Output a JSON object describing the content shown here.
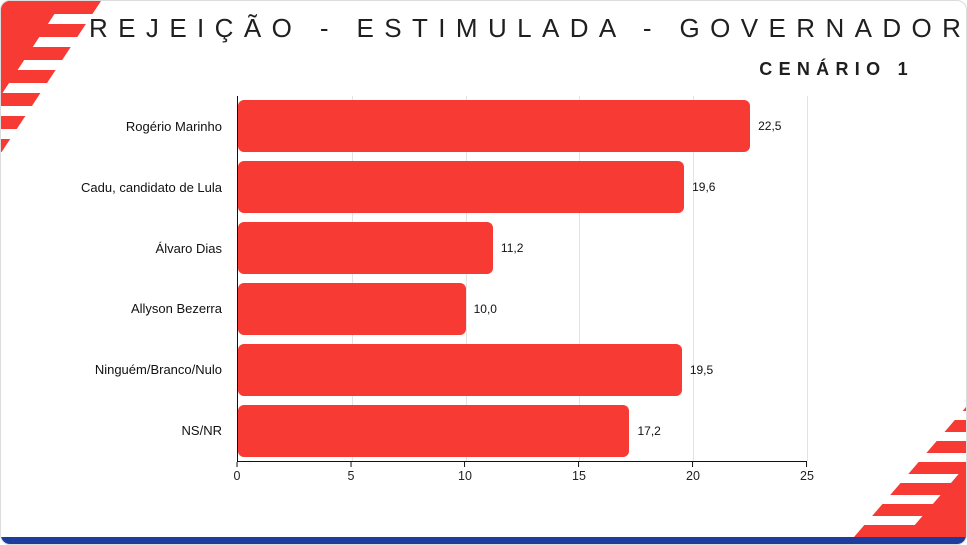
{
  "colors": {
    "accent_red": "#f73b34",
    "navy": "#1d3c9e",
    "grid": "#e3e3e3",
    "text": "#1f1f1f"
  },
  "header": {
    "title": "REJEIÇÃO - ESTIMULADA - GOVERNADOR",
    "subtitle": "CENÁRIO 1"
  },
  "chart_data": {
    "type": "bar",
    "orientation": "horizontal",
    "title": "REJEIÇÃO - ESTIMULADA - GOVERNADOR",
    "subtitle": "CENÁRIO 1",
    "categories": [
      "Rogério Marinho",
      "Cadu, candidato de Lula",
      "Álvaro Dias",
      "Allyson Bezerra",
      "Ninguém/Branco/Nulo",
      "NS/NR"
    ],
    "values": [
      22.5,
      19.6,
      11.2,
      10.0,
      19.5,
      17.2
    ],
    "value_labels": [
      "22,5",
      "19,6",
      "11,2",
      "10,0",
      "19,5",
      "17,2"
    ],
    "x_ticks": [
      0,
      5,
      10,
      15,
      20,
      25
    ],
    "xlim": [
      0,
      25
    ],
    "bar_color": "#f73b34",
    "grid": true,
    "legend": false
  }
}
